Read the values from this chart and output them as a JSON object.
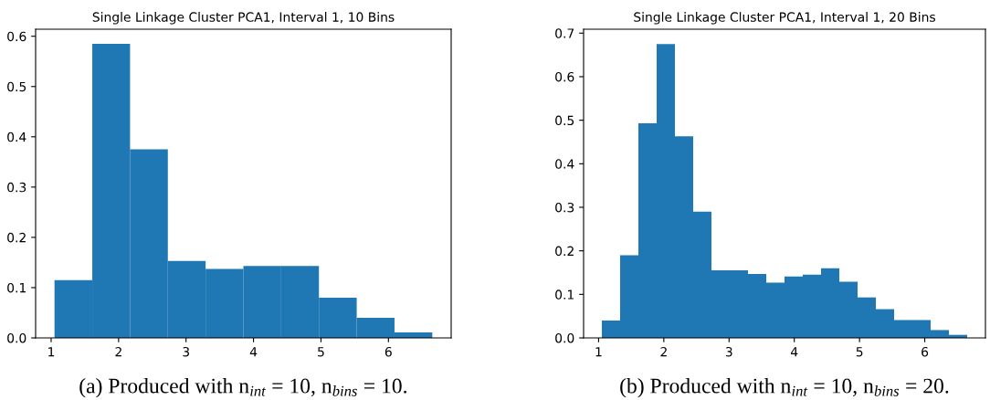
{
  "chart_data": [
    {
      "type": "histogram",
      "title": "Single Linkage Cluster PCA1, Interval 1, 10 Bins",
      "bins": [
        1.05,
        1.61,
        2.17,
        2.73,
        3.29,
        3.85,
        4.41,
        4.97,
        5.53,
        6.09,
        6.65
      ],
      "values": [
        0.115,
        0.585,
        0.375,
        0.153,
        0.137,
        0.143,
        0.143,
        0.08,
        0.04,
        0.011
      ],
      "color": "#1f77b4",
      "xlim": [
        0.77,
        6.93
      ],
      "ylim": [
        0,
        0.614
      ],
      "xticks": [
        1,
        2,
        3,
        4,
        5,
        6
      ],
      "yticks": [
        {
          "value": 0,
          "label": "0.0"
        },
        0.1,
        0.2,
        0.3,
        0.4,
        0.5,
        0.6
      ],
      "annotations": [
        "(a) Produced with n$_{int}$ = 10, n$_{bins}$ = 10."
      ]
    },
    {
      "type": "histogram",
      "title": "Single Linkage Cluster PCA1, Interval 1, 20 Bins",
      "bins": [
        1.05,
        1.33,
        1.61,
        1.89,
        2.17,
        2.45,
        2.73,
        3.01,
        3.29,
        3.57,
        3.85,
        4.13,
        4.41,
        4.69,
        4.97,
        5.25,
        5.53,
        5.81,
        6.09,
        6.37,
        6.65
      ],
      "values": [
        0.04,
        0.19,
        0.493,
        0.675,
        0.463,
        0.29,
        0.155,
        0.155,
        0.147,
        0.127,
        0.141,
        0.145,
        0.16,
        0.129,
        0.093,
        0.066,
        0.041,
        0.041,
        0.018,
        0.007
      ],
      "color": "#1f77b4",
      "xlim": [
        0.77,
        6.93
      ],
      "ylim": [
        0,
        0.709
      ],
      "xticks": [
        1,
        2,
        3,
        4,
        5,
        6
      ],
      "yticks": [
        {
          "value": 0,
          "label": "0.0"
        },
        0.1,
        0.2,
        0.3,
        0.4,
        0.5,
        0.6,
        0.7
      ],
      "annotations": [
        "(b) Produced with n$_{int}$ = 10, n$_{bins}$ = 20."
      ]
    }
  ]
}
